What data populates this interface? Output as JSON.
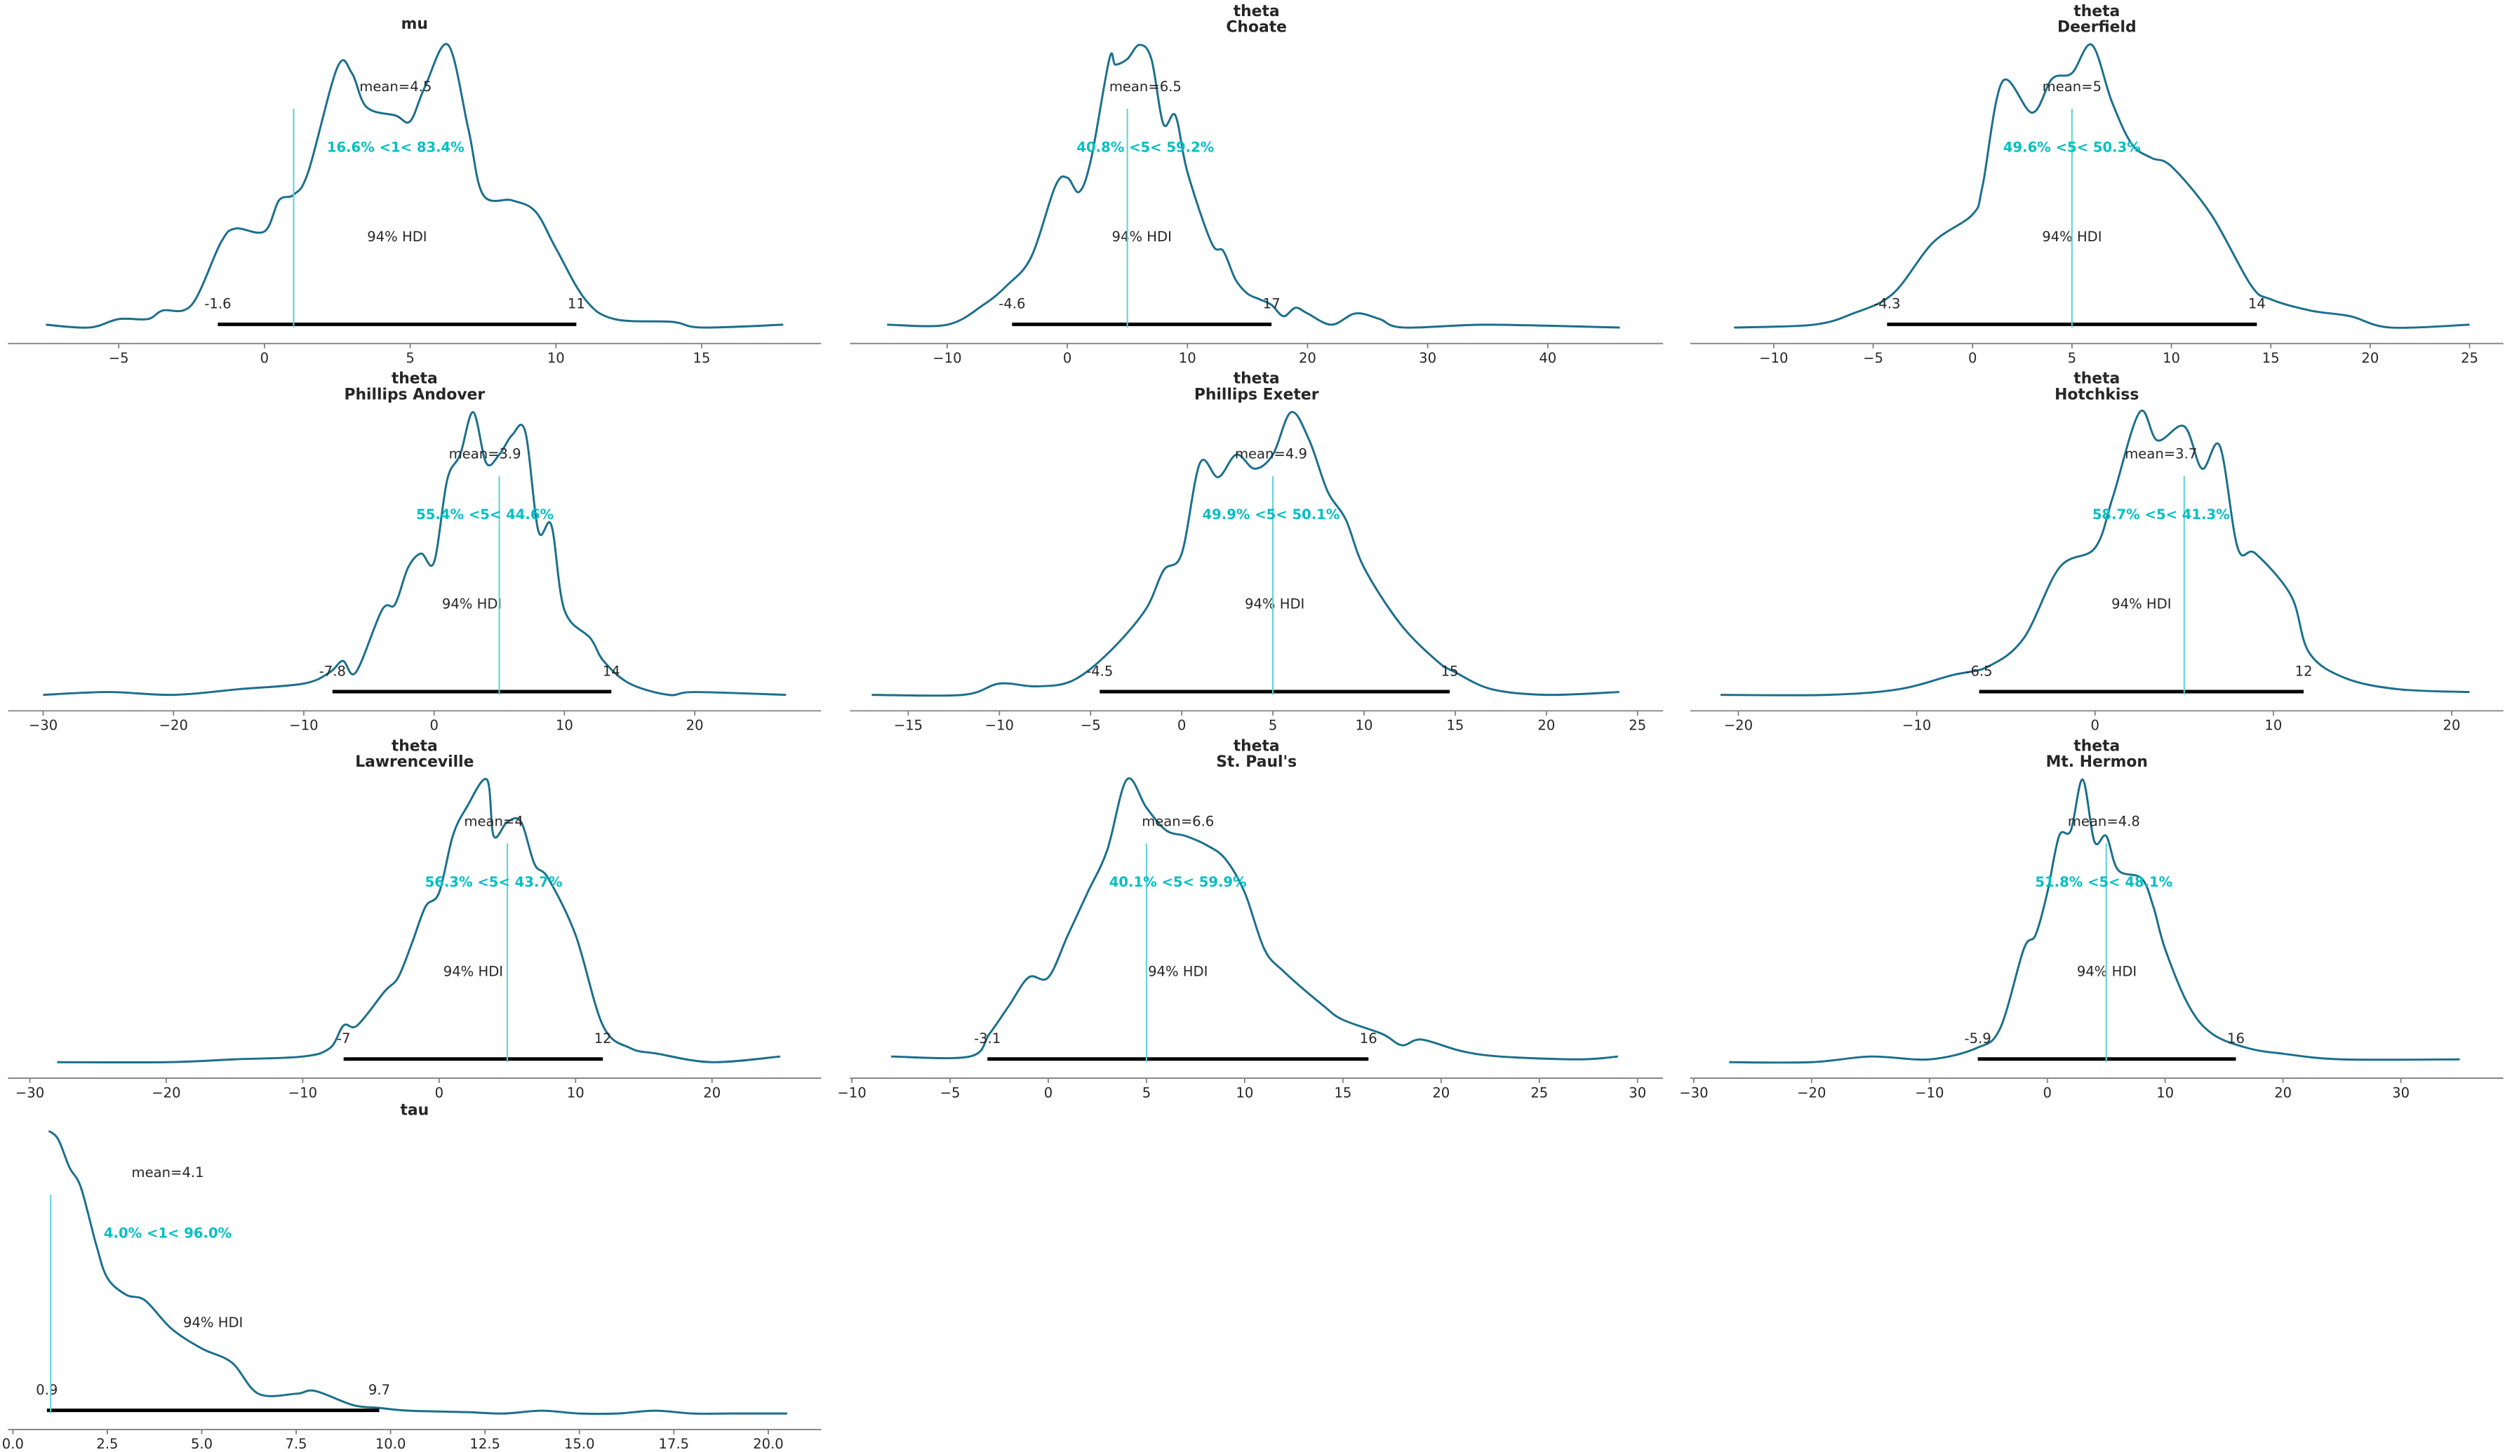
{
  "colors": {
    "kde": "#1a6f8c",
    "ref_line": "#5fd3d3",
    "ref_text": "#00bfc4",
    "hdi_bar": "#000000",
    "axis": "#808080",
    "text": "#262626"
  },
  "chart_data": [
    {
      "type": "line",
      "title": "mu",
      "subtitle": "",
      "mean_label": "mean=4.5",
      "mean": 4.5,
      "ref_label": "16.6% <1< 83.4%",
      "ref_value": 1,
      "hdi_label": "94% HDI",
      "hdi": [
        -1.6,
        10.7
      ],
      "hdi_labels": [
        "-1.6",
        "11"
      ],
      "xlim": [
        -8.8,
        19.1
      ],
      "xticks": [
        -5,
        0,
        5,
        10,
        15
      ],
      "xtick_labels": [
        "−5",
        "0",
        "5",
        "10",
        "15"
      ],
      "density": {
        "x": [
          -7.5,
          -6,
          -5,
          -4,
          -3.5,
          -2.5,
          -1.5,
          -1,
          0,
          0.5,
          1,
          1.5,
          2.5,
          3,
          3.5,
          4.5,
          5,
          5.5,
          6.3,
          7,
          7.5,
          8.5,
          9.3,
          10,
          11,
          12,
          14,
          15,
          17.8
        ],
        "y": [
          0.01,
          0,
          0.03,
          0.03,
          0.06,
          0.08,
          0.3,
          0.35,
          0.34,
          0.45,
          0.47,
          0.55,
          0.92,
          0.9,
          0.78,
          0.75,
          0.73,
          0.85,
          1.0,
          0.7,
          0.47,
          0.45,
          0.41,
          0.28,
          0.1,
          0.03,
          0.02,
          0,
          0.01
        ]
      }
    },
    {
      "type": "line",
      "title": "theta",
      "subtitle": "Choate",
      "mean_label": "mean=6.5",
      "mean": 6.5,
      "ref_label": "40.8% <5< 59.2%",
      "ref_value": 5,
      "hdi_label": "94% HDI",
      "hdi": [
        -4.6,
        17
      ],
      "hdi_labels": [
        "-4.6",
        "17"
      ],
      "xlim": [
        -18.1,
        49.6
      ],
      "xticks": [
        -10,
        0,
        10,
        20,
        30,
        40
      ],
      "xtick_labels": [
        "−10",
        "0",
        "10",
        "20",
        "30",
        "40"
      ],
      "density": {
        "x": [
          -15,
          -10,
          -7,
          -5,
          -3,
          -1,
          0,
          1,
          2,
          3.5,
          4,
          5,
          6,
          7,
          8,
          9,
          10,
          12,
          13,
          14,
          15,
          16,
          17,
          18,
          19,
          20,
          22,
          24,
          26,
          28,
          35,
          46
        ],
        "y": [
          0.01,
          0.01,
          0.08,
          0.15,
          0.25,
          0.5,
          0.53,
          0.48,
          0.6,
          0.95,
          0.93,
          0.95,
          1.0,
          0.95,
          0.72,
          0.75,
          0.55,
          0.3,
          0.27,
          0.17,
          0.12,
          0.1,
          0.08,
          0.04,
          0.07,
          0.05,
          0.01,
          0.05,
          0.03,
          0,
          0.01,
          0
        ]
      }
    },
    {
      "type": "line",
      "title": "theta",
      "subtitle": "Deerfield",
      "mean_label": "mean=5",
      "mean": 5,
      "ref_label": "49.6% <5< 50.3%",
      "ref_value": 5,
      "hdi_label": "94% HDI",
      "hdi": [
        -4.3,
        14.3
      ],
      "hdi_labels": [
        "-4.3",
        "14"
      ],
      "xlim": [
        -14.2,
        26.7
      ],
      "xticks": [
        -10,
        -5,
        0,
        5,
        10,
        15,
        20,
        25
      ],
      "xtick_labels": [
        "−10",
        "−5",
        "0",
        "5",
        "10",
        "15",
        "20",
        "25"
      ],
      "density": {
        "x": [
          -12,
          -8,
          -6,
          -4,
          -2,
          0,
          0.5,
          1.5,
          3,
          4,
          5,
          6,
          7,
          8,
          9,
          10,
          12,
          14,
          15,
          17,
          19,
          21,
          25
        ],
        "y": [
          0,
          0.01,
          0.05,
          0.12,
          0.3,
          0.4,
          0.5,
          0.87,
          0.76,
          0.88,
          0.9,
          1.0,
          0.8,
          0.65,
          0.6,
          0.57,
          0.4,
          0.15,
          0.1,
          0.06,
          0.04,
          0,
          0.01
        ]
      }
    },
    {
      "type": "line",
      "title": "theta",
      "subtitle": "Phillips Andover",
      "mean_label": "mean=3.9",
      "mean": 3.9,
      "ref_label": "55.4% <5< 44.6%",
      "ref_value": 5,
      "hdi_label": "94% HDI",
      "hdi": [
        -7.8,
        13.6
      ],
      "hdi_labels": [
        "-7.8",
        "14"
      ],
      "xlim": [
        -32.7,
        29.7
      ],
      "xticks": [
        -30,
        -20,
        -10,
        0,
        10,
        20
      ],
      "xtick_labels": [
        "−30",
        "−20",
        "−10",
        "0",
        "10",
        "20"
      ],
      "density": {
        "x": [
          -30,
          -25,
          -20,
          -15,
          -10,
          -8,
          -7,
          -6,
          -4,
          -3,
          -2,
          -1,
          0,
          1,
          2,
          3,
          4,
          5,
          6,
          7,
          8,
          9,
          10,
          12,
          13,
          15,
          18,
          20,
          27
        ],
        "y": [
          0,
          0.01,
          0,
          0.02,
          0.04,
          0.08,
          0.12,
          0.08,
          0.3,
          0.32,
          0.45,
          0.5,
          0.47,
          0.76,
          0.85,
          1.0,
          0.82,
          0.85,
          0.92,
          0.93,
          0.58,
          0.6,
          0.3,
          0.2,
          0.12,
          0.04,
          0,
          0.01,
          0
        ]
      }
    },
    {
      "type": "line",
      "title": "theta",
      "subtitle": "Phillips Exeter",
      "mean_label": "mean=4.9",
      "mean": 4.9,
      "ref_label": "49.9% <5< 50.1%",
      "ref_value": 5,
      "hdi_label": "94% HDI",
      "hdi": [
        -4.5,
        14.7
      ],
      "hdi_labels": [
        "-4.5",
        "15"
      ],
      "xlim": [
        -18.2,
        26.4
      ],
      "xticks": [
        -15,
        -10,
        -5,
        0,
        5,
        10,
        15,
        20,
        25
      ],
      "xtick_labels": [
        "−15",
        "−10",
        "−5",
        "0",
        "5",
        "10",
        "15",
        "20",
        "25"
      ],
      "density": {
        "x": [
          -17,
          -12,
          -10,
          -8,
          -6,
          -4,
          -2,
          -1,
          0,
          1,
          2,
          3,
          4,
          5,
          6,
          7,
          8,
          9,
          10,
          12,
          14,
          15,
          17,
          20,
          24
        ],
        "y": [
          0,
          0,
          0.04,
          0.03,
          0.05,
          0.15,
          0.3,
          0.44,
          0.5,
          0.82,
          0.77,
          0.85,
          0.8,
          0.85,
          1.0,
          0.9,
          0.72,
          0.62,
          0.45,
          0.25,
          0.12,
          0.08,
          0.02,
          0,
          0.01
        ]
      }
    },
    {
      "type": "line",
      "title": "theta",
      "subtitle": "Hotchkiss",
      "mean_label": "mean=3.7",
      "mean": 3.7,
      "ref_label": "58.7% <5< 41.3%",
      "ref_value": 5,
      "hdi_label": "94% HDI",
      "hdi": [
        -6.5,
        11.7
      ],
      "hdi_labels": [
        "-6.5",
        "12"
      ],
      "xlim": [
        -22.7,
        22.9
      ],
      "xticks": [
        -20,
        -10,
        0,
        10,
        20
      ],
      "xtick_labels": [
        "−20",
        "−10",
        "0",
        "10",
        "20"
      ],
      "density": {
        "x": [
          -21,
          -15,
          -11,
          -8,
          -6,
          -4,
          -2,
          0,
          1,
          2.5,
          3.5,
          5,
          6,
          7,
          8,
          9,
          11,
          12,
          14,
          17,
          21
        ],
        "y": [
          0,
          0,
          0.02,
          0.07,
          0.1,
          0.2,
          0.45,
          0.52,
          0.7,
          1.0,
          0.9,
          0.95,
          0.8,
          0.88,
          0.52,
          0.5,
          0.35,
          0.15,
          0.06,
          0.02,
          0.01
        ]
      }
    },
    {
      "type": "line",
      "title": "theta",
      "subtitle": "Lawrenceville",
      "mean_label": "mean=4",
      "mean": 4,
      "ref_label": "56.3% <5< 43.7%",
      "ref_value": 5,
      "hdi_label": "94% HDI",
      "hdi": [
        -7,
        12
      ],
      "hdi_labels": [
        "-7",
        "12"
      ],
      "xlim": [
        -31.6,
        28
      ],
      "xticks": [
        -30,
        -20,
        -10,
        0,
        10,
        20
      ],
      "xtick_labels": [
        "−30",
        "−20",
        "−10",
        "0",
        "10",
        "20"
      ],
      "density": {
        "x": [
          -28,
          -20,
          -15,
          -10,
          -8,
          -7,
          -6,
          -4,
          -3,
          -2,
          -1,
          0,
          1,
          2,
          3.5,
          4,
          5,
          6,
          7,
          8,
          10,
          12,
          14,
          16,
          20,
          25
        ],
        "y": [
          0,
          0,
          0.01,
          0.02,
          0.05,
          0.13,
          0.13,
          0.25,
          0.3,
          0.42,
          0.55,
          0.6,
          0.8,
          0.9,
          1.0,
          0.8,
          0.85,
          0.85,
          0.7,
          0.65,
          0.45,
          0.13,
          0.05,
          0.03,
          0,
          0.02
        ]
      }
    },
    {
      "type": "line",
      "title": "theta",
      "subtitle": "St. Paul's",
      "mean_label": "mean=6.6",
      "mean": 6.6,
      "ref_label": "40.1% <5< 59.9%",
      "ref_value": 5,
      "hdi_label": "94% HDI",
      "hdi": [
        -3.1,
        16.3
      ],
      "hdi_labels": [
        "-3.1",
        "16"
      ],
      "xlim": [
        -10.1,
        31.3
      ],
      "xticks": [
        -10,
        -5,
        0,
        5,
        10,
        15,
        20,
        25,
        30
      ],
      "xtick_labels": [
        "−10",
        "−5",
        "0",
        "5",
        "10",
        "15",
        "20",
        "25",
        "30"
      ],
      "density": {
        "x": [
          -8,
          -4,
          -3,
          -2,
          -1,
          0,
          1,
          2,
          3,
          4,
          5,
          6,
          7,
          8,
          9,
          10,
          11,
          12,
          14,
          15,
          17,
          18,
          19,
          21,
          23,
          27,
          29
        ],
        "y": [
          0.02,
          0.02,
          0.1,
          0.2,
          0.3,
          0.3,
          0.45,
          0.6,
          0.75,
          1.0,
          0.9,
          0.82,
          0.8,
          0.77,
          0.72,
          0.6,
          0.4,
          0.32,
          0.2,
          0.15,
          0.1,
          0.06,
          0.08,
          0.04,
          0.02,
          0.01,
          0.02
        ]
      }
    },
    {
      "type": "line",
      "title": "theta",
      "subtitle": "Mt. Hermon",
      "mean_label": "mean=4.8",
      "mean": 4.8,
      "ref_label": "51.8% <5< 48.1%",
      "ref_value": 5,
      "hdi_label": "94% HDI",
      "hdi": [
        -5.9,
        16
      ],
      "hdi_labels": [
        "-5.9",
        "16"
      ],
      "xlim": [
        -30.3,
        38.7
      ],
      "xticks": [
        -30,
        -20,
        -10,
        0,
        10,
        20,
        30
      ],
      "xtick_labels": [
        "−30",
        "−20",
        "−10",
        "0",
        "10",
        "20",
        "30"
      ],
      "density": {
        "x": [
          -27,
          -20,
          -15,
          -10,
          -6,
          -4,
          -2,
          -1,
          0,
          1,
          2,
          3,
          4,
          5,
          6,
          8,
          9,
          10,
          12,
          14,
          17,
          20,
          25,
          35
        ],
        "y": [
          0,
          0,
          0.02,
          0.01,
          0.05,
          0.12,
          0.4,
          0.45,
          0.6,
          0.8,
          0.82,
          1.0,
          0.78,
          0.8,
          0.68,
          0.65,
          0.55,
          0.4,
          0.2,
          0.1,
          0.05,
          0.03,
          0.01,
          0.01
        ]
      }
    },
    {
      "type": "line",
      "title": "tau",
      "subtitle": "",
      "mean_label": "mean=4.1",
      "mean": 4.1,
      "ref_label": "4.0% <1< 96.0%",
      "ref_value": 1,
      "hdi_label": "94% HDI",
      "hdi": [
        0.9,
        9.7
      ],
      "hdi_labels": [
        "0.9",
        "9.7"
      ],
      "xlim": [
        -0.13,
        21.4
      ],
      "xticks": [
        0,
        2.5,
        5,
        7.5,
        10,
        12.5,
        15,
        17.5,
        20
      ],
      "xtick_labels": [
        "0.0",
        "2.5",
        "5.0",
        "7.5",
        "10.0",
        "12.5",
        "15.0",
        "17.5",
        "20.0"
      ],
      "density": {
        "x": [
          0.95,
          1.2,
          1.5,
          1.8,
          2.2,
          2.5,
          3,
          3.5,
          4.2,
          5,
          5.8,
          6.5,
          7.5,
          8,
          9,
          9.7,
          10.5,
          12,
          13,
          14,
          15,
          16,
          17,
          18,
          19,
          20.5
        ],
        "y": [
          1.0,
          0.97,
          0.87,
          0.8,
          0.6,
          0.48,
          0.42,
          0.4,
          0.3,
          0.23,
          0.18,
          0.07,
          0.07,
          0.08,
          0.03,
          0.02,
          0.01,
          0.005,
          0,
          0.01,
          0,
          0,
          0.01,
          0,
          0,
          0
        ]
      }
    }
  ]
}
